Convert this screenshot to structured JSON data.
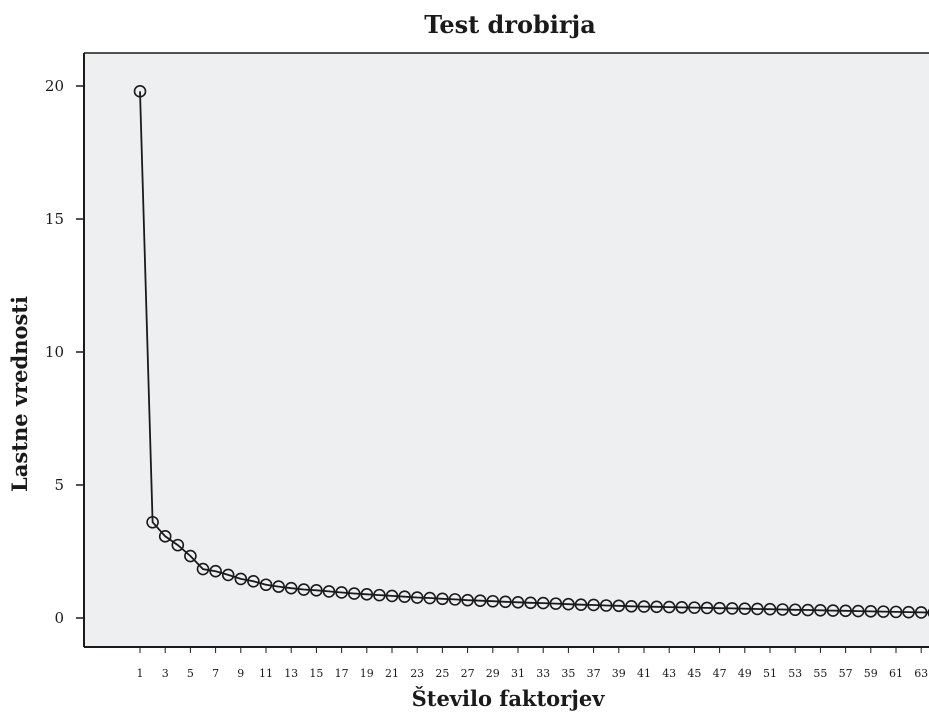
{
  "chart_data": {
    "type": "line",
    "title": "Test drobirja",
    "xlabel": "Število faktorjev",
    "ylabel": "Lastne vrednosti",
    "xlim": [
      1,
      64
    ],
    "ylim": [
      0,
      20
    ],
    "yticks": [
      0,
      5,
      10,
      15,
      20
    ],
    "xticks": [
      1,
      3,
      5,
      7,
      9,
      11,
      13,
      15,
      17,
      19,
      21,
      23,
      25,
      27,
      29,
      31,
      33,
      35,
      37,
      39,
      41,
      43,
      45,
      47,
      49,
      51,
      53,
      55,
      57,
      59,
      61,
      63
    ],
    "grid": false,
    "legend": false,
    "background_color": "#eeeff0",
    "line_color": "#1a1a1a",
    "marker": "open-circle",
    "series": [
      {
        "x": [
          1,
          2,
          3,
          4,
          5,
          6,
          7,
          8,
          9,
          10,
          11,
          12,
          13,
          14,
          15,
          16,
          17,
          18,
          19,
          20,
          21,
          22,
          23,
          24,
          25,
          26,
          27,
          28,
          29,
          30,
          31,
          32,
          33,
          34,
          35,
          36,
          37,
          38,
          39,
          40,
          41,
          42,
          43,
          44,
          45,
          46,
          47,
          48,
          49,
          50,
          51,
          52,
          53,
          54,
          55,
          56,
          57,
          58,
          59,
          60,
          61,
          62,
          63,
          64
        ],
        "values": [
          19.8,
          3.6,
          3.07,
          2.74,
          2.33,
          1.84,
          1.76,
          1.62,
          1.47,
          1.38,
          1.25,
          1.18,
          1.12,
          1.07,
          1.04,
          1.0,
          0.96,
          0.92,
          0.89,
          0.86,
          0.83,
          0.8,
          0.77,
          0.75,
          0.72,
          0.7,
          0.67,
          0.65,
          0.63,
          0.61,
          0.59,
          0.57,
          0.56,
          0.54,
          0.52,
          0.5,
          0.49,
          0.47,
          0.46,
          0.44,
          0.43,
          0.42,
          0.41,
          0.4,
          0.39,
          0.38,
          0.37,
          0.36,
          0.35,
          0.34,
          0.33,
          0.32,
          0.31,
          0.3,
          0.29,
          0.28,
          0.27,
          0.26,
          0.25,
          0.24,
          0.23,
          0.22,
          0.21,
          0.2
        ]
      }
    ]
  }
}
